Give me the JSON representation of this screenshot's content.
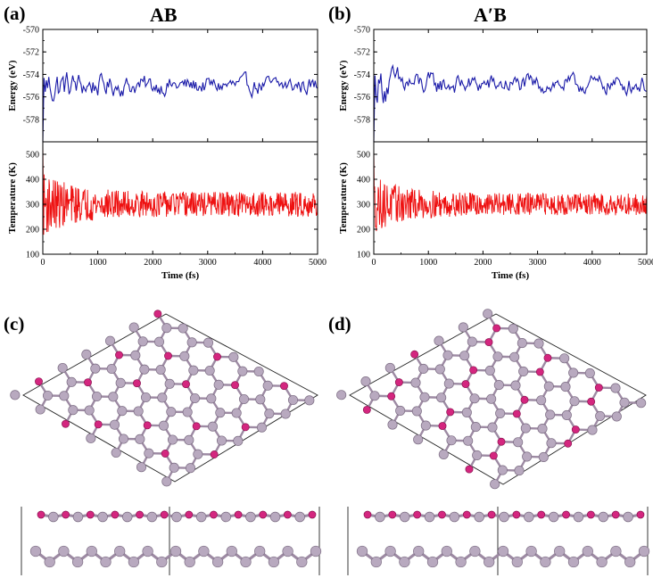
{
  "figure": {
    "panels": [
      {
        "label": "(a)",
        "title": "AB"
      },
      {
        "label": "(b)",
        "title": "A′B"
      },
      {
        "label": "(c)"
      },
      {
        "label": "(d)"
      }
    ]
  },
  "chart_data": [
    {
      "type": "line",
      "panel": "(a)",
      "title": "AB",
      "xlabel": "Time (fs)",
      "xlim": [
        0,
        5000
      ],
      "xticks": [
        "0",
        "1000",
        "2000",
        "3000",
        "4000",
        "5000"
      ],
      "subplots": [
        {
          "ylabel": "Energy (eV)",
          "ylim": [
            -580,
            -570
          ],
          "yticks": [
            "-570",
            "-572",
            "-574",
            "-576",
            "-578"
          ],
          "series": [
            {
              "color": "#1a1aa8",
              "mean": -575.0,
              "amplitude": 0.7,
              "start": -580,
              "x": [
                0,
                5000
              ]
            }
          ]
        },
        {
          "ylabel": "Temperature (K)",
          "ylim": [
            100,
            550
          ],
          "yticks": [
            "100",
            "200",
            "300",
            "400",
            "500"
          ],
          "series": [
            {
              "color": "#ee1111",
              "mean": 300,
              "amplitude": 45,
              "start": 550,
              "x": [
                0,
                5000
              ]
            }
          ]
        }
      ]
    },
    {
      "type": "line",
      "panel": "(b)",
      "title": "A′B",
      "xlabel": "Time (fs)",
      "xlim": [
        0,
        5000
      ],
      "xticks": [
        "0",
        "1000",
        "2000",
        "3000",
        "4000",
        "5000"
      ],
      "subplots": [
        {
          "ylabel": "Energy (eV)",
          "ylim": [
            -580,
            -570
          ],
          "yticks": [
            "-570",
            "-572",
            "-574",
            "-576",
            "-578"
          ],
          "series": [
            {
              "color": "#1a1aa8",
              "mean": -574.9,
              "amplitude": 0.7,
              "start": -580,
              "x": [
                0,
                5000
              ]
            }
          ]
        },
        {
          "ylabel": "Temperature (K)",
          "ylim": [
            100,
            550
          ],
          "yticks": [
            "100",
            "200",
            "300",
            "400",
            "500"
          ],
          "series": [
            {
              "color": "#ee1111",
              "mean": 300,
              "amplitude": 40,
              "start": 530,
              "x": [
                0,
                5000
              ]
            }
          ]
        }
      ]
    }
  ],
  "structure": {
    "atom_color_light": "#b8a9bf",
    "atom_color_dark": "#d4267f",
    "bond_color": "#9d8aa3"
  }
}
